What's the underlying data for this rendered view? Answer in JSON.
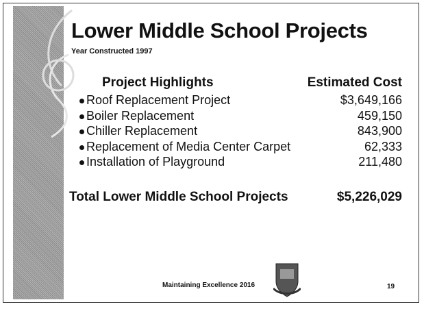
{
  "header": {
    "title": "Lower Middle School Projects",
    "subtitle": "Year Constructed 1997"
  },
  "table": {
    "columns": [
      "Project Highlights",
      "Estimated Cost"
    ],
    "rows": [
      [
        "Roof Replacement Project",
        "$3,649,166"
      ],
      [
        "Boiler Replacement",
        "459,150"
      ],
      [
        "Chiller Replacement",
        "843,900"
      ],
      [
        "Replacement of Media Center Carpet",
        "62,333"
      ],
      [
        "Installation of Playground",
        "211,480"
      ]
    ],
    "total": [
      "Total Lower Middle School Projects",
      "$5,226,029"
    ]
  },
  "footer": {
    "text": "Maintaining Excellence 2016",
    "page_number": "19"
  }
}
